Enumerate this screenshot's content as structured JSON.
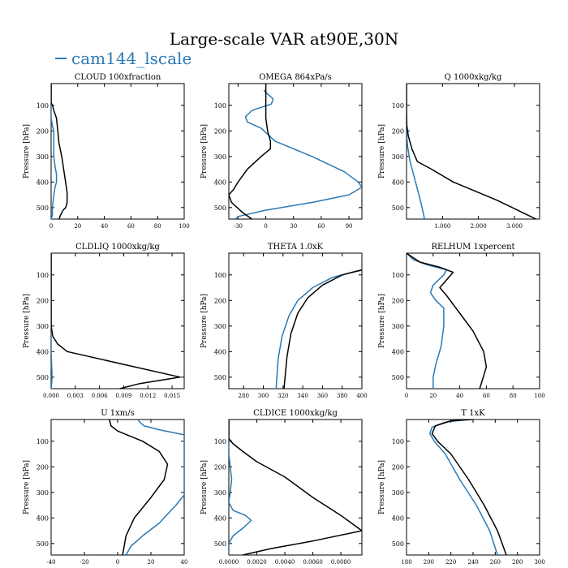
{
  "figure": {
    "title": "Large-scale VAR at90E,30N",
    "legend_label": "cam144_lscale",
    "colors": {
      "series1": "#2a7ab5",
      "series2": "#000000",
      "axis": "#000000"
    }
  },
  "chart_data": [
    {
      "type": "line",
      "title": "CLOUD  100xfraction",
      "ylabel": "Pressure [hPa]",
      "xlim": [
        0,
        100
      ],
      "ylim": [
        545,
        15
      ],
      "xticks": [
        0,
        20,
        40,
        60,
        80,
        100
      ],
      "xtick_labels": [
        "0",
        "20",
        "40",
        "60",
        "80",
        "100"
      ],
      "yticks": [
        100,
        200,
        300,
        400,
        500
      ],
      "ytick_labels": [
        "100",
        "200",
        "300",
        "400",
        "500"
      ],
      "series": [
        {
          "name": "cam144_lscale",
          "color": "#2a7ab5",
          "x": [
            0,
            0,
            0,
            1,
            2,
            2,
            2,
            2,
            3,
            4,
            4,
            3,
            2,
            1,
            1,
            0
          ],
          "y": [
            15,
            100,
            150,
            180,
            200,
            225,
            250,
            300,
            340,
            370,
            400,
            420,
            450,
            500,
            530,
            545
          ]
        },
        {
          "name": "black",
          "color": "#000000",
          "x": [
            0,
            0,
            1,
            2,
            4,
            5,
            6,
            8,
            10,
            12,
            12,
            11,
            9,
            7,
            6
          ],
          "y": [
            15,
            90,
            100,
            120,
            150,
            200,
            250,
            300,
            370,
            440,
            480,
            500,
            510,
            530,
            545
          ]
        }
      ]
    },
    {
      "type": "line",
      "title": "OMEGA  864xPa/s",
      "ylabel": "Pressure [hPa]",
      "xlim": [
        -40,
        104
      ],
      "ylim": [
        545,
        15
      ],
      "xticks": [
        -30,
        0,
        30,
        60,
        90
      ],
      "xtick_labels": [
        "-30",
        "0",
        "30",
        "60",
        "90"
      ],
      "yticks": [
        100,
        200,
        300,
        400,
        500
      ],
      "ytick_labels": [
        "100",
        "200",
        "300",
        "400",
        "500"
      ],
      "series": [
        {
          "name": "cam144_lscale",
          "color": "#2a7ab5",
          "x": [
            -2,
            0,
            8,
            6,
            -15,
            -22,
            -20,
            -5,
            10,
            50,
            85,
            100,
            104,
            90,
            50,
            0,
            -30,
            -33
          ],
          "y": [
            40,
            50,
            75,
            95,
            120,
            145,
            165,
            190,
            240,
            300,
            360,
            400,
            420,
            450,
            480,
            510,
            535,
            545
          ]
        },
        {
          "name": "black",
          "color": "#000000",
          "x": [
            0,
            0,
            0,
            0,
            2,
            5,
            5,
            -5,
            -20,
            -30,
            -35,
            -40,
            -37,
            -25,
            -15
          ],
          "y": [
            15,
            50,
            100,
            150,
            200,
            240,
            270,
            300,
            350,
            400,
            430,
            450,
            480,
            520,
            545
          ]
        }
      ]
    },
    {
      "type": "line",
      "title": "Q  1000xkg/kg",
      "ylabel": "Pressure [hPa]",
      "xlim": [
        0,
        3.7
      ],
      "ylim": [
        545,
        15
      ],
      "xticks": [
        1,
        2,
        3
      ],
      "xtick_labels": [
        "1.000",
        "2.000",
        "3.000"
      ],
      "yticks": [
        100,
        200,
        300,
        400,
        500
      ],
      "ytick_labels": [
        "100",
        "200",
        "300",
        "400",
        "500"
      ],
      "series": [
        {
          "name": "cam144_lscale",
          "color": "#2a7ab5",
          "x": [
            0,
            0,
            0.005,
            0.01,
            0.03,
            0.1,
            0.25,
            0.4,
            0.5
          ],
          "y": [
            15,
            120,
            180,
            220,
            260,
            320,
            400,
            480,
            545
          ]
        },
        {
          "name": "black",
          "color": "#000000",
          "x": [
            0,
            0,
            0.01,
            0.05,
            0.15,
            0.3,
            0.7,
            1.3,
            2.5,
            3.6
          ],
          "y": [
            15,
            120,
            180,
            220,
            270,
            320,
            350,
            400,
            470,
            545
          ]
        }
      ]
    },
    {
      "type": "line",
      "title": "CLDLIQ  1000xkg/kg",
      "ylabel": "Pressure [hPa]",
      "xlim": [
        0,
        0.0165
      ],
      "ylim": [
        545,
        15
      ],
      "xticks": [
        0,
        0.003,
        0.006,
        0.009,
        0.012,
        0.015
      ],
      "xtick_labels": [
        "0.000",
        "0.003",
        "0.006",
        "0.009",
        "0.012",
        "0.015"
      ],
      "yticks": [
        100,
        200,
        300,
        400,
        500
      ],
      "ytick_labels": [
        "100",
        "200",
        "300",
        "400",
        "500"
      ],
      "series": [
        {
          "name": "cam144_lscale",
          "color": "#2a7ab5",
          "x": [
            0,
            0,
            0,
            5e-05,
            0.0001,
            0.0001,
            5e-05,
            0
          ],
          "y": [
            15,
            300,
            400,
            440,
            480,
            510,
            530,
            545
          ]
        },
        {
          "name": "black",
          "color": "#000000",
          "x": [
            0,
            0,
            0.0002,
            0.0008,
            0.002,
            0.009,
            0.016,
            0.011,
            0.0085
          ],
          "y": [
            15,
            300,
            340,
            370,
            400,
            450,
            500,
            525,
            545
          ]
        }
      ]
    },
    {
      "type": "line",
      "title": "THETA  1.0xK",
      "ylabel": "Pressure [hPa]",
      "xlim": [
        265,
        400
      ],
      "ylim": [
        545,
        15
      ],
      "xticks": [
        280,
        300,
        320,
        340,
        360,
        380,
        400
      ],
      "xtick_labels": [
        "280",
        "300",
        "320",
        "340",
        "360",
        "380",
        "400"
      ],
      "yticks": [
        100,
        200,
        300,
        400,
        500
      ],
      "ytick_labels": [
        "100",
        "200",
        "300",
        "400",
        "500"
      ],
      "series": [
        {
          "name": "cam144_lscale",
          "color": "#2a7ab5",
          "x": [
            400,
            390,
            370,
            350,
            335,
            326,
            319,
            315,
            313
          ],
          "y": [
            82,
            90,
            110,
            150,
            200,
            260,
            340,
            430,
            545
          ]
        },
        {
          "name": "black",
          "color": "#000000",
          "x": [
            400,
            395,
            380,
            360,
            345,
            335,
            328,
            324,
            321
          ],
          "y": [
            80,
            85,
            100,
            140,
            190,
            250,
            330,
            420,
            545
          ]
        }
      ]
    },
    {
      "type": "line",
      "title": "RELHUM  1xpercent",
      "ylabel": "Pressure [hPa]",
      "xlim": [
        0,
        100
      ],
      "ylim": [
        545,
        15
      ],
      "xticks": [
        0,
        20,
        40,
        60,
        80,
        100
      ],
      "xtick_labels": [
        "0",
        "20",
        "40",
        "60",
        "80",
        "100"
      ],
      "yticks": [
        100,
        200,
        300,
        400,
        500
      ],
      "ytick_labels": [
        "100",
        "200",
        "300",
        "400",
        "500"
      ],
      "series": [
        {
          "name": "cam144_lscale",
          "color": "#2a7ab5",
          "x": [
            0,
            5,
            15,
            30,
            28,
            20,
            18,
            22,
            28,
            28,
            26,
            22,
            20,
            20
          ],
          "y": [
            15,
            40,
            60,
            80,
            100,
            140,
            170,
            200,
            230,
            300,
            380,
            450,
            500,
            545
          ]
        },
        {
          "name": "black",
          "color": "#000000",
          "x": [
            0,
            10,
            25,
            35,
            30,
            25,
            30,
            40,
            50,
            58,
            60,
            55
          ],
          "y": [
            15,
            50,
            70,
            90,
            120,
            150,
            180,
            250,
            320,
            400,
            460,
            545
          ]
        }
      ]
    },
    {
      "type": "line",
      "title": "U  1xm/s",
      "ylabel": "Pressure [hPa]",
      "xlim": [
        -40,
        40
      ],
      "ylim": [
        545,
        15
      ],
      "xticks": [
        -40,
        -20,
        0,
        20,
        40
      ],
      "xtick_labels": [
        "-40",
        "-20",
        "0",
        "20",
        "40"
      ],
      "yticks": [
        100,
        200,
        300,
        400,
        500
      ],
      "ytick_labels": [
        "100",
        "200",
        "300",
        "400",
        "500"
      ],
      "series": [
        {
          "name": "cam144_lscale",
          "color": "#2a7ab5",
          "x": [
            12,
            14,
            16,
            25,
            40,
            40,
            35,
            25,
            15,
            8,
            5
          ],
          "y": [
            15,
            30,
            40,
            55,
            75,
            310,
            350,
            420,
            470,
            510,
            545
          ]
        },
        {
          "name": "black",
          "color": "#000000",
          "x": [
            -5,
            -4,
            0,
            15,
            25,
            30,
            28,
            20,
            10,
            5,
            3
          ],
          "y": [
            15,
            40,
            60,
            100,
            140,
            190,
            250,
            320,
            400,
            470,
            545
          ]
        }
      ]
    },
    {
      "type": "line",
      "title": "CLDICE  1000xkg/kg",
      "ylabel": "Pressure [hPa]",
      "xlim": [
        0,
        0.0095
      ],
      "ylim": [
        545,
        15
      ],
      "xticks": [
        0,
        0.002,
        0.004,
        0.006,
        0.008
      ],
      "xtick_labels": [
        "0.0000",
        "0.0020",
        "0.0040",
        "0.0060",
        "0.0080"
      ],
      "yticks": [
        100,
        200,
        300,
        400,
        500
      ],
      "ytick_labels": [
        "100",
        "200",
        "300",
        "400",
        "500"
      ],
      "series": [
        {
          "name": "cam144_lscale",
          "color": "#2a7ab5",
          "x": [
            0,
            0,
            0.0001,
            0.0002,
            0.0001,
            0,
            0.0003,
            0.0012,
            0.0016,
            0.001,
            0.0003,
            0,
            0
          ],
          "y": [
            15,
            150,
            200,
            250,
            300,
            340,
            370,
            390,
            410,
            440,
            470,
            500,
            545
          ]
        },
        {
          "name": "black",
          "color": "#000000",
          "x": [
            0,
            0,
            0.0003,
            0.001,
            0.002,
            0.004,
            0.006,
            0.008,
            0.0095,
            0.006,
            0.003,
            0.001
          ],
          "y": [
            15,
            90,
            110,
            140,
            180,
            240,
            320,
            390,
            450,
            490,
            520,
            545
          ]
        }
      ]
    },
    {
      "type": "line",
      "title": "T  1xK",
      "ylabel": "Pressure [hPa]",
      "xlim": [
        180,
        300
      ],
      "ylim": [
        545,
        15
      ],
      "xticks": [
        180,
        200,
        220,
        240,
        260,
        280,
        300
      ],
      "xtick_labels": [
        "180",
        "200",
        "220",
        "240",
        "260",
        "280",
        "300"
      ],
      "yticks": [
        100,
        200,
        300,
        400,
        500
      ],
      "ytick_labels": [
        "100",
        "200",
        "300",
        "400",
        "500"
      ],
      "series": [
        {
          "name": "cam144_lscale",
          "color": "#2a7ab5",
          "x": [
            235,
            215,
            203,
            201,
            205,
            215,
            228,
            243,
            255,
            262
          ],
          "y": [
            15,
            25,
            45,
            70,
            100,
            150,
            250,
            350,
            450,
            545
          ]
        },
        {
          "name": "black",
          "color": "#000000",
          "x": [
            240,
            220,
            206,
            203,
            208,
            220,
            236,
            250,
            262,
            270
          ],
          "y": [
            15,
            20,
            40,
            70,
            100,
            150,
            250,
            350,
            450,
            545
          ]
        }
      ]
    }
  ]
}
